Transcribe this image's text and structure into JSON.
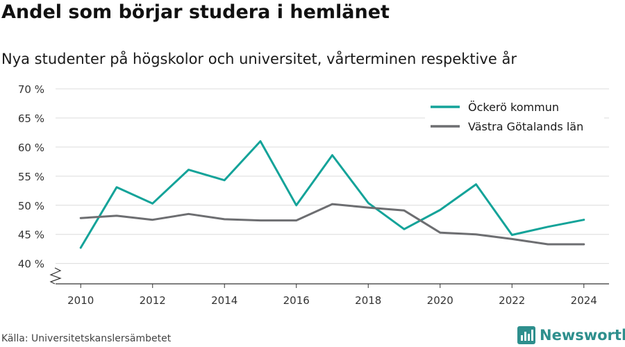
{
  "title": "Andel som börjar studera i hemlänet",
  "subtitle": "Nya studenter på högskolor och universitet, vårterminen respektive år",
  "source": "Källa: Universitetskanslersämbetet",
  "brand": "Newsworthy",
  "colors": {
    "ockero": "#14a399",
    "vg": "#6d6e71",
    "brand": "#2e8f8d"
  },
  "chart_data": {
    "type": "line",
    "title": "Andel som börjar studera i hemlänet",
    "xlabel": "",
    "ylabel": "",
    "x": [
      2010,
      2011,
      2012,
      2013,
      2014,
      2015,
      2016,
      2017,
      2018,
      2019,
      2020,
      2021,
      2022,
      2023,
      2024
    ],
    "xticks": [
      2010,
      2012,
      2014,
      2016,
      2018,
      2020,
      2022,
      2024
    ],
    "xtick_labels": [
      "2010",
      "2012",
      "2014",
      "2016",
      "2018",
      "2020",
      "2022",
      "2024"
    ],
    "yticks": [
      40,
      45,
      50,
      55,
      60,
      65,
      70
    ],
    "ytick_labels": [
      "40 %",
      "45 %",
      "50 %",
      "55 %",
      "60 %",
      "65 %",
      "70 %"
    ],
    "ylim": [
      36.5,
      70
    ],
    "xlim": [
      2009.3,
      2024.7
    ],
    "y_axis_break": true,
    "grid": true,
    "legend_position": "top-right",
    "series": [
      {
        "name": "Öckerö kommun",
        "color": "#14a399",
        "values": [
          42.7,
          53.1,
          50.3,
          56.1,
          54.3,
          61.0,
          50.0,
          58.6,
          50.4,
          45.9,
          49.2,
          53.6,
          44.9,
          46.3,
          47.5
        ]
      },
      {
        "name": "Västra Götalands län",
        "color": "#6d6e71",
        "values": [
          47.8,
          48.2,
          47.5,
          48.5,
          47.6,
          47.4,
          47.4,
          50.2,
          49.6,
          49.1,
          45.3,
          45.0,
          44.2,
          43.3,
          43.3
        ]
      }
    ]
  }
}
